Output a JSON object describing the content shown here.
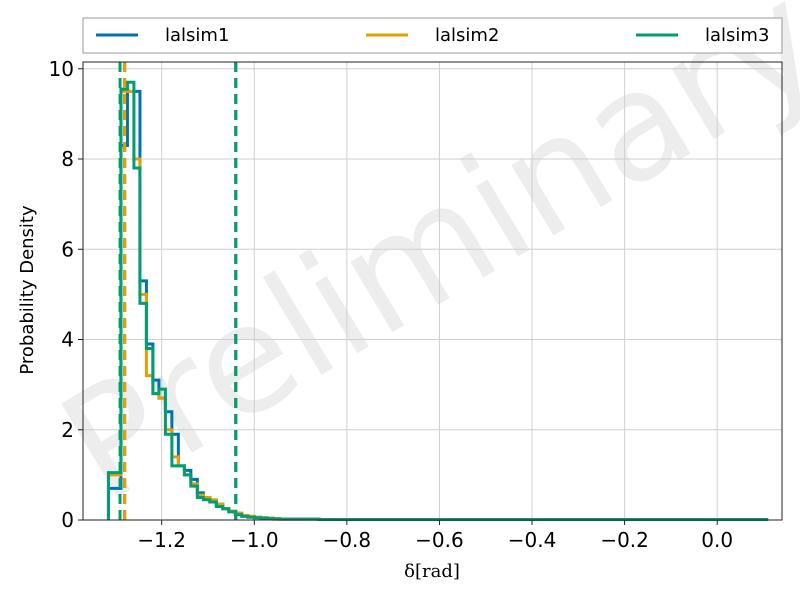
{
  "chart_data": {
    "type": "histogram",
    "xlabel": "δ[rad]",
    "ylabel": "Probability Density",
    "xlim": [
      -1.37,
      0.14
    ],
    "ylim": [
      0,
      10.15
    ],
    "xticks": [
      -1.2,
      -1.0,
      -0.8,
      -0.6,
      -0.4,
      -0.2,
      0.0
    ],
    "xtick_labels": [
      "−1.2",
      "−1.0",
      "−0.8",
      "−0.6",
      "−0.4",
      "−0.2",
      "0.0"
    ],
    "yticks": [
      0,
      2,
      4,
      6,
      8,
      10
    ],
    "ytick_labels": [
      "0",
      "2",
      "4",
      "6",
      "8",
      "10"
    ],
    "grid": true,
    "legend_position": "top, above plot",
    "watermark": "Preliminary",
    "bin_edges": [
      -1.315,
      -1.288,
      -1.274,
      -1.26,
      -1.247,
      -1.233,
      -1.219,
      -1.206,
      -1.192,
      -1.178,
      -1.164,
      -1.151,
      -1.137,
      -1.123,
      -1.11,
      -1.096,
      -1.082,
      -1.068,
      -1.055,
      -1.041,
      -1.027,
      -1.014,
      -1.0,
      -0.986,
      -0.972,
      -0.959,
      -0.945,
      -0.931,
      -0.918,
      -0.904,
      -0.89,
      -0.86,
      -0.8,
      -0.7,
      -0.6,
      -0.5,
      -0.4,
      -0.3,
      -0.2,
      -0.1,
      0.0,
      0.11
    ],
    "series": [
      {
        "name": "lalsim1",
        "color": "#0072b2",
        "values": [
          0.7,
          8.3,
          9.5,
          9.5,
          5.3,
          3.9,
          3.1,
          2.7,
          2.4,
          1.9,
          1.2,
          1.1,
          0.9,
          0.6,
          0.5,
          0.4,
          0.35,
          0.25,
          0.2,
          0.15,
          0.1,
          0.08,
          0.06,
          0.05,
          0.04,
          0.03,
          0.02,
          0.02,
          0.02,
          0.02,
          0.02,
          0.01,
          0.01,
          0.01,
          0.01,
          0.01,
          0.01,
          0.01,
          0.01,
          0.01,
          0.01
        ],
        "median": -1.28,
        "median2": -1.04
      },
      {
        "name": "lalsim2",
        "color": "#e69f00",
        "values": [
          1.0,
          9.5,
          9.5,
          8.0,
          5.0,
          3.2,
          2.8,
          2.7,
          2.0,
          1.4,
          1.2,
          1.0,
          0.8,
          0.55,
          0.5,
          0.45,
          0.35,
          0.25,
          0.2,
          0.15,
          0.1,
          0.08,
          0.06,
          0.05,
          0.04,
          0.03,
          0.02,
          0.02,
          0.02,
          0.02,
          0.02,
          0.01,
          0.01,
          0.01,
          0.01,
          0.01,
          0.01,
          0.01,
          0.01,
          0.01,
          0.01
        ],
        "median": -1.28,
        "median2": -1.04
      },
      {
        "name": "lalsim3",
        "color": "#009e73",
        "values": [
          1.05,
          9.55,
          9.7,
          7.8,
          4.8,
          3.8,
          2.8,
          2.9,
          1.9,
          1.2,
          1.2,
          1.0,
          0.75,
          0.5,
          0.45,
          0.4,
          0.3,
          0.25,
          0.18,
          0.12,
          0.08,
          0.06,
          0.05,
          0.04,
          0.03,
          0.02,
          0.02,
          0.02,
          0.02,
          0.02,
          0.02,
          0.01,
          0.01,
          0.01,
          0.01,
          0.01,
          0.01,
          0.01,
          0.01,
          0.01,
          0.01
        ],
        "median": -1.29,
        "median2": -1.04
      }
    ]
  }
}
